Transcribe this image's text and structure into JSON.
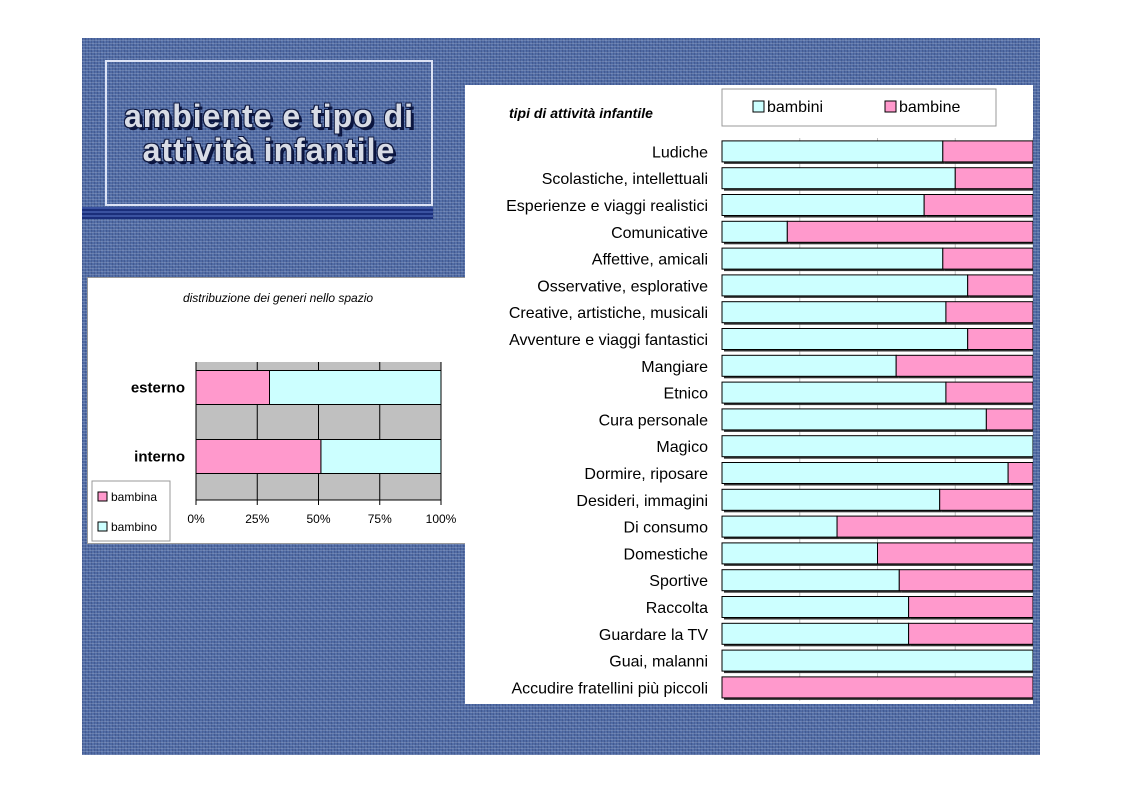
{
  "slide": {
    "title": "ambiente e tipo di attività infantile"
  },
  "chart_data": [
    {
      "type": "bar",
      "orientation": "horizontal",
      "stacked": "percent",
      "title": "distribuzione dei generi nello spazio",
      "categories": [
        "esterno",
        "interno"
      ],
      "series": [
        {
          "name": "bambina",
          "color": "#ff99cc",
          "values": [
            30,
            51
          ]
        },
        {
          "name": "bambino",
          "color": "#ccffff",
          "values": [
            70,
            49
          ]
        }
      ],
      "xticks": [
        "0%",
        "25%",
        "50%",
        "75%",
        "100%"
      ],
      "xlim": [
        0,
        100
      ],
      "plot_background": "#c0c0c0",
      "legend": "bottom-left"
    },
    {
      "type": "bar",
      "orientation": "horizontal",
      "stacked": "percent",
      "title": "tipi di attività infantile",
      "categories": [
        "Ludiche",
        "Scolastiche, intellettuali",
        "Esperienze e viaggi realistici",
        "Comunicative",
        "Affettive, amicali",
        "Osservative, esplorative",
        "Creative, artistiche, musicali",
        "Avventure e viaggi fantastici",
        "Mangiare",
        "Etnico",
        "Cura personale",
        "Magico",
        "Dormire, riposare",
        "Desideri, immagini",
        "Di consumo",
        "Domestiche",
        "Sportive",
        "Raccolta",
        "Guardare la TV",
        "Guai, malanni",
        "Accudire fratellini più piccoli"
      ],
      "series": [
        {
          "name": "bambini",
          "color": "#ccffff",
          "values": [
            71,
            75,
            65,
            21,
            71,
            79,
            72,
            79,
            56,
            72,
            85,
            100,
            92,
            70,
            37,
            50,
            57,
            60,
            60,
            100,
            0
          ]
        },
        {
          "name": "bambine",
          "color": "#ff99cc",
          "values": [
            29,
            25,
            35,
            79,
            29,
            21,
            28,
            21,
            44,
            28,
            15,
            0,
            8,
            30,
            63,
            50,
            43,
            40,
            40,
            0,
            100
          ]
        }
      ],
      "xlim": [
        0,
        100
      ],
      "legend": "top-right"
    }
  ]
}
